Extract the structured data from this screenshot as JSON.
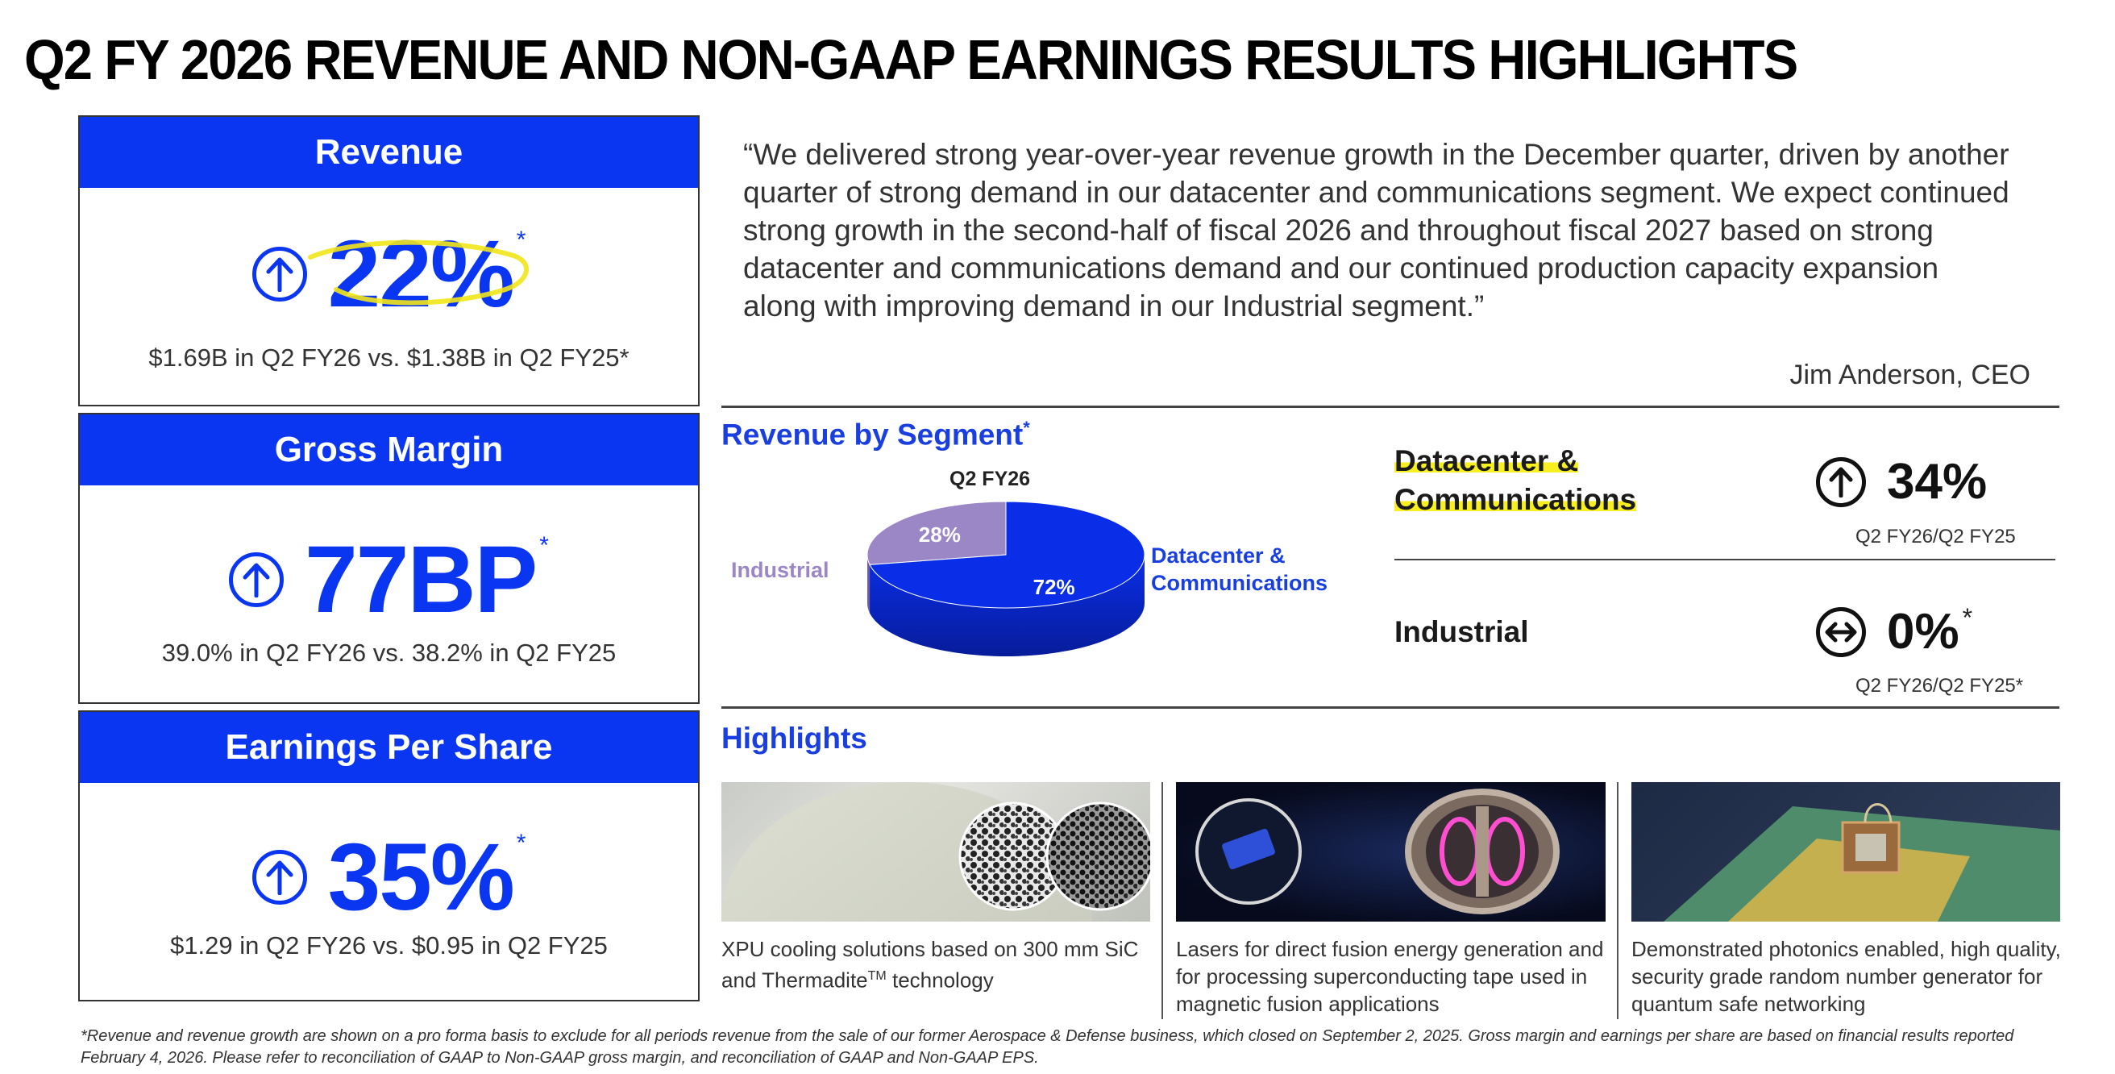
{
  "title": "Q2 FY 2026 REVENUE AND NON-GAAP EARNINGS RESULTS HIGHLIGHTS",
  "kpis": [
    {
      "header": "Revenue",
      "value": "22%",
      "star": "*",
      "sub": "$1.69B in Q2 FY26 vs. $1.38B in Q2 FY25*",
      "icon": "up-arrow-icon"
    },
    {
      "header": "Gross Margin",
      "value": "77BP",
      "star": "*",
      "sub": "39.0% in Q2 FY26 vs. 38.2% in Q2 FY25",
      "icon": "up-arrow-icon"
    },
    {
      "header": "Earnings Per Share",
      "value": "35%",
      "star": "*",
      "sub": "$1.29 in Q2 FY26 vs. $0.95 in Q2 FY25",
      "icon": "up-arrow-icon"
    }
  ],
  "quote": {
    "text": "“We delivered strong year-over-year revenue growth in the December quarter, driven by another quarter of strong demand in our datacenter and communications segment. We expect continued strong growth in the second-half of fiscal 2026 and throughout fiscal 2027 based on strong datacenter and communications demand and our continued production capacity expansion along with improving demand in our Industrial segment.”",
    "attribution": "Jim Anderson, CEO"
  },
  "segment": {
    "title": "Revenue by Segment",
    "star": "*",
    "chart_label": "Q2 FY26",
    "chart_data": {
      "type": "pie",
      "categories": [
        "Industrial",
        "Datacenter & Communications"
      ],
      "values": [
        28,
        72
      ],
      "value_labels": [
        "28%",
        "72%"
      ],
      "colors": [
        "#9b86c6",
        "#0a2ee8"
      ]
    },
    "labels": {
      "industrial": "Industrial",
      "dc_line1": "Datacenter &",
      "dc_line2": "Communications"
    },
    "rows": [
      {
        "name_line1": "Datacenter &",
        "name_line2": "Communications",
        "value": "34%",
        "note": "Q2 FY26/Q2 FY25",
        "icon": "up-arrow-icon"
      },
      {
        "name_line1": "Industrial",
        "value": "0%",
        "star": "*",
        "note": "Q2 FY26/Q2 FY25*",
        "icon": "left-right-arrow-icon"
      }
    ]
  },
  "highlights": {
    "title": "Highlights",
    "items": [
      {
        "caption_pre": "XPU cooling solutions based on 300 mm SiC and Thermadite",
        "caption_tm": "TM",
        "caption_post": " technology"
      },
      {
        "caption": "Lasers for direct fusion energy generation and for processing superconducting tape used in magnetic fusion applications"
      },
      {
        "caption": "Demonstrated photonics enabled, high quality, security grade random number generator for quantum safe networking"
      }
    ]
  },
  "footnote": "*Revenue and revenue growth are shown on a pro forma basis to exclude for all periods revenue from the sale of our former Aerospace & Defense business, which closed on September 2, 2025.  Gross margin and earnings per share are based on financial results reported February 4, 2026. Please refer to reconciliation of GAAP to Non-GAAP gross margin, and reconciliation of GAAP and Non-GAAP EPS.",
  "colors": {
    "accent": "#0a36f2",
    "section_blue": "#1a3fe0",
    "industrial_purple": "#9b86c6",
    "highlight_yellow": "#f7ef1f"
  }
}
